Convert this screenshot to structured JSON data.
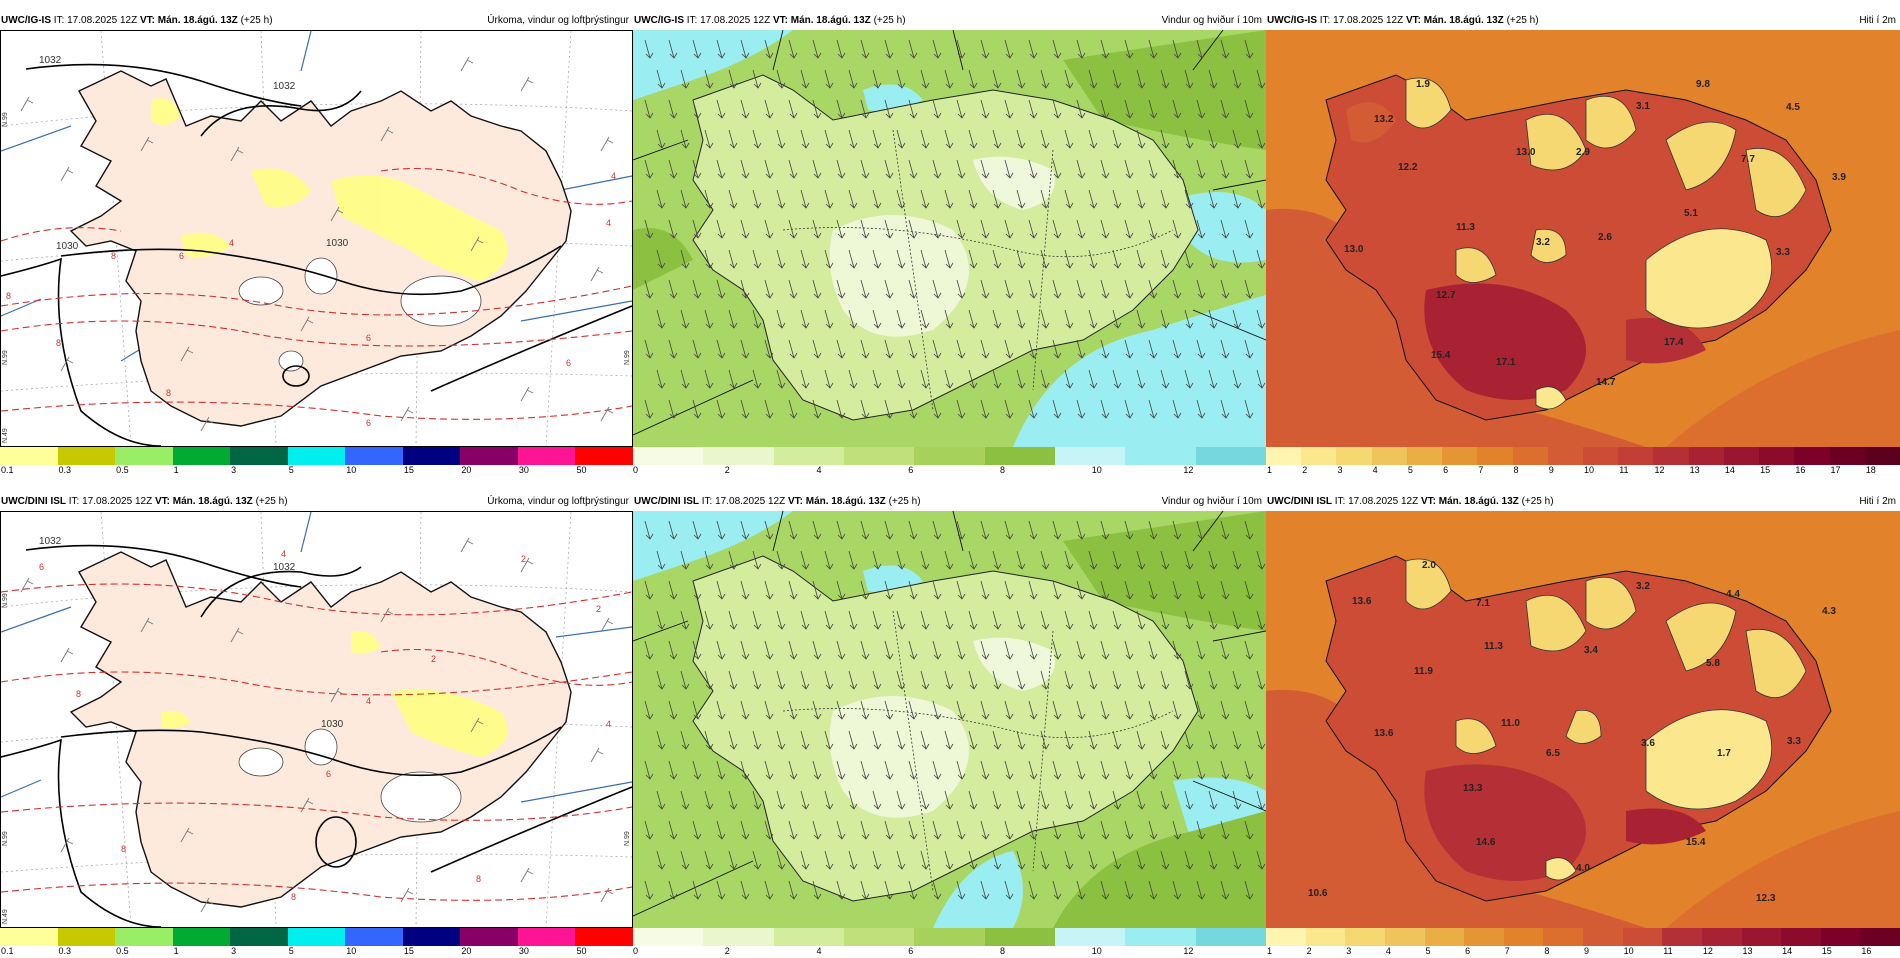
{
  "rows": [
    {
      "model": "UWC/IG-IS",
      "issued": "IT: 17.08.2025 12Z",
      "valid": "VT: Mán. 18.ágú. 13Z",
      "lead": "(+25 h)",
      "panels": {
        "precip": {
          "title": "Úrkoma, vindur og loftþrýstingur",
          "colorbar": {
            "colors": [
              "#ffff99",
              "#c8c800",
              "#99ee66",
              "#00aa33",
              "#006644",
              "#00eeee",
              "#3366ff",
              "#000080",
              "#880066",
              "#ff1493",
              "#ff0000"
            ],
            "ticks": [
              "0.1",
              "0.3",
              "0.5",
              "1",
              "3",
              "5",
              "10",
              "15",
              "20",
              "30",
              "50"
            ]
          },
          "isobars": [
            "1032",
            "1032",
            "1030",
            "1030"
          ],
          "red_labels": [
            "4",
            "8",
            "8",
            "6",
            "6",
            "6",
            "4",
            "8",
            "8",
            "4",
            "6"
          ],
          "edge_labels": [
            "N.99",
            "N.49",
            "N.99",
            "N.99"
          ]
        },
        "wind": {
          "title": "Vindur og hviður í 10m",
          "colorbar": {
            "colors": [
              "#f6fbe6",
              "#eaf6cc",
              "#d4ec9e",
              "#bfe07a",
              "#a6d15a",
              "#8cc040",
              "#c7f5f7",
              "#9aeef2",
              "#74d8de"
            ],
            "ticks": [
              "0",
              "2",
              "4",
              "6",
              "8",
              "10",
              "12"
            ]
          }
        },
        "temp": {
          "title": "Hiti í 2m",
          "colorbar": {
            "colors": [
              "#fff4b0",
              "#fbe78e",
              "#f6d872",
              "#f0c45c",
              "#eaae45",
              "#e59634",
              "#e2822b",
              "#dc6e2e",
              "#d45c34",
              "#cc4c36",
              "#c23e36",
              "#b52f36",
              "#a82234",
              "#9a1530",
              "#8c0a2c",
              "#7c0028",
              "#6c0024",
              "#5c0020"
            ],
            "ticks": [
              "1",
              "2",
              "3",
              "4",
              "5",
              "6",
              "7",
              "8",
              "9",
              "10",
              "11",
              "12",
              "13",
              "14",
              "15",
              "16",
              "17",
              "18"
            ]
          },
          "labels": [
            "1.9",
            "9.8",
            "4.5",
            "13.2",
            "3.1",
            "13.0",
            "2.9",
            "7.7",
            "12.2",
            "3.9",
            "11.3",
            "5.1",
            "13.0",
            "3.2",
            "2.6",
            "3.3",
            "12.7",
            "15.4",
            "17.1",
            "14.7",
            "17.4"
          ]
        }
      }
    },
    {
      "model": "UWC/DINI ISL",
      "issued": "IT: 17.08.2025 12Z",
      "valid": "VT: Mán. 18.ágú. 13Z",
      "lead": "(+25 h)",
      "panels": {
        "precip": {
          "title": "Úrkoma, vindur og loftþrýstingur",
          "colorbar": {
            "colors": [
              "#ffff99",
              "#c8c800",
              "#99ee66",
              "#00aa33",
              "#006644",
              "#00eeee",
              "#3366ff",
              "#000080",
              "#880066",
              "#ff1493",
              "#ff0000"
            ],
            "ticks": [
              "0.1",
              "0.3",
              "0.5",
              "1",
              "3",
              "5",
              "10",
              "15",
              "20",
              "30",
              "50"
            ]
          },
          "isobars": [
            "1032",
            "1032",
            "1030"
          ],
          "red_labels": [
            "4",
            "6",
            "2",
            "2",
            "2",
            "4",
            "8",
            "6",
            "8",
            "8",
            "4",
            "8"
          ],
          "edge_labels": [
            "N.99",
            "N.49",
            "N.99",
            "N.99"
          ]
        },
        "wind": {
          "title": "Vindur og hviður í 10m",
          "colorbar": {
            "colors": [
              "#f6fbe6",
              "#eaf6cc",
              "#d4ec9e",
              "#bfe07a",
              "#a6d15a",
              "#8cc040",
              "#c7f5f7",
              "#9aeef2",
              "#74d8de"
            ],
            "ticks": [
              "0",
              "2",
              "4",
              "6",
              "8",
              "10",
              "12"
            ]
          }
        },
        "temp": {
          "title": "Hiti í 2m",
          "colorbar": {
            "colors": [
              "#fff4b0",
              "#fbe78e",
              "#f6d872",
              "#f0c45c",
              "#eaae45",
              "#e59634",
              "#e2822b",
              "#dc6e2e",
              "#d45c34",
              "#cc4c36",
              "#b52f36",
              "#a82234",
              "#9a1530",
              "#8c0a2c",
              "#7c0028",
              "#6c0024"
            ],
            "ticks": [
              "1",
              "2",
              "3",
              "4",
              "5",
              "6",
              "7",
              "8",
              "9",
              "10",
              "11",
              "12",
              "13",
              "14",
              "15",
              "16"
            ]
          },
          "labels": [
            "2.0",
            "13.6",
            "7.1",
            "3.2",
            "4.4",
            "4.3",
            "11.3",
            "3.4",
            "11.9",
            "5.8",
            "11.0",
            "13.6",
            "6.5",
            "3.6",
            "1.7",
            "3.3",
            "13.3",
            "14.6",
            "15.4",
            "4.0",
            "10.6",
            "12.3"
          ]
        }
      }
    }
  ]
}
